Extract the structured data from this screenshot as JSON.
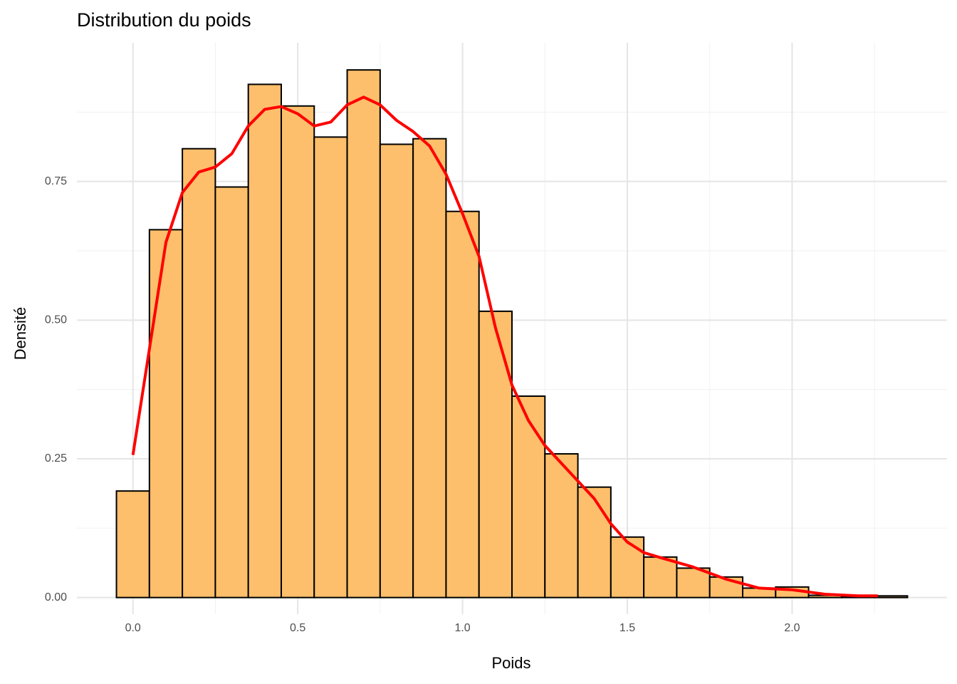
{
  "chart_data": {
    "type": "histogram",
    "title": "Distribution du poids",
    "x_label": "Poids",
    "y_label": "Densité",
    "bins": [
      -0.05,
      0.05,
      0.15,
      0.25,
      0.35,
      0.45,
      0.55,
      0.65,
      0.75,
      0.85,
      0.95,
      1.05,
      1.15,
      1.25,
      1.35,
      1.45,
      1.55,
      1.65,
      1.75,
      1.85,
      1.95,
      2.05,
      2.15,
      2.25,
      2.35
    ],
    "values": [
      0.192,
      0.663,
      0.809,
      0.74,
      0.925,
      0.886,
      0.83,
      0.951,
      0.817,
      0.827,
      0.696,
      0.516,
      0.363,
      0.259,
      0.199,
      0.109,
      0.073,
      0.053,
      0.037,
      0.017,
      0.019,
      0.004,
      0.001,
      0.003
    ],
    "color": "#fdbf6b",
    "edge_color": "#000000",
    "density": {
      "color": "#ff0000",
      "x": [
        0,
        0.05,
        0.1,
        0.15,
        0.2,
        0.25,
        0.3,
        0.35,
        0.4,
        0.45,
        0.5,
        0.55,
        0.6,
        0.65,
        0.7,
        0.75,
        0.8,
        0.85,
        0.9,
        0.95,
        1.0,
        1.05,
        1.1,
        1.15,
        1.2,
        1.25,
        1.3,
        1.35,
        1.4,
        1.45,
        1.5,
        1.55,
        1.6,
        1.7,
        1.8,
        1.9,
        2.0,
        2.1,
        2.2,
        2.26
      ],
      "values": [
        0.257,
        0.448,
        0.64,
        0.73,
        0.767,
        0.776,
        0.8,
        0.85,
        0.88,
        0.885,
        0.872,
        0.85,
        0.857,
        0.888,
        0.902,
        0.888,
        0.86,
        0.84,
        0.814,
        0.763,
        0.692,
        0.615,
        0.486,
        0.383,
        0.319,
        0.274,
        0.242,
        0.21,
        0.178,
        0.133,
        0.1,
        0.081,
        0.072,
        0.055,
        0.033,
        0.017,
        0.014,
        0.006,
        0.003,
        0.003
      ]
    },
    "xlim": [
      -0.17,
      2.47
    ],
    "ylim": [
      -0.03,
      1.0
    ],
    "xticks": [
      {
        "value": 0,
        "label": "0.0"
      },
      0.5,
      {
        "value": 1,
        "label": "1.0"
      },
      1.5,
      {
        "value": 2,
        "label": "2.0"
      }
    ],
    "yticks": [
      {
        "value": 0,
        "label": "0.00"
      },
      0.25,
      {
        "value": 0.5,
        "label": "0.50"
      },
      0.75
    ],
    "grid": true
  }
}
